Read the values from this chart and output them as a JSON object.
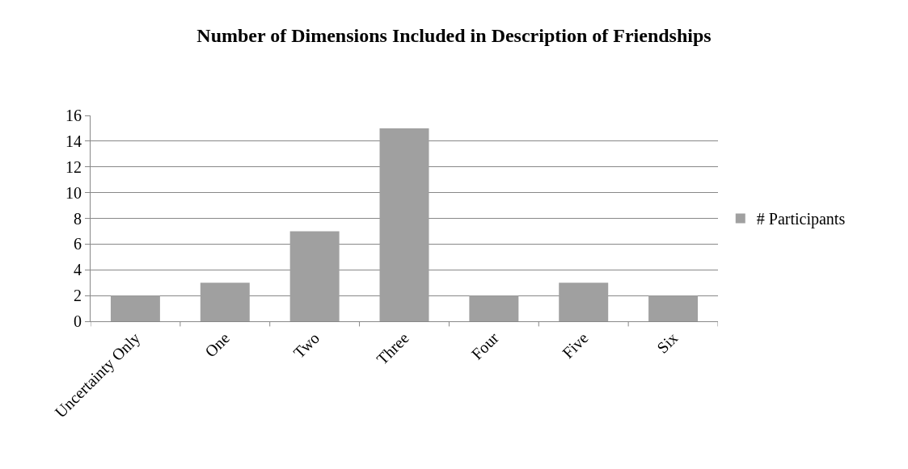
{
  "chart_data": {
    "type": "bar",
    "title": "Number of Dimensions Included in Description of Friendships",
    "categories": [
      "Uncertainty Only",
      "One",
      "Two",
      "Three",
      "Four",
      "Five",
      "Six"
    ],
    "series": [
      {
        "name": "# Participants",
        "color": "#a0a0a0",
        "values": [
          2,
          3,
          7,
          15,
          2,
          3,
          2
        ]
      }
    ],
    "ylim": [
      0,
      16
    ],
    "yticks": [
      0,
      2,
      4,
      6,
      8,
      10,
      12,
      14,
      16
    ],
    "grid": "y",
    "legend": "right"
  }
}
